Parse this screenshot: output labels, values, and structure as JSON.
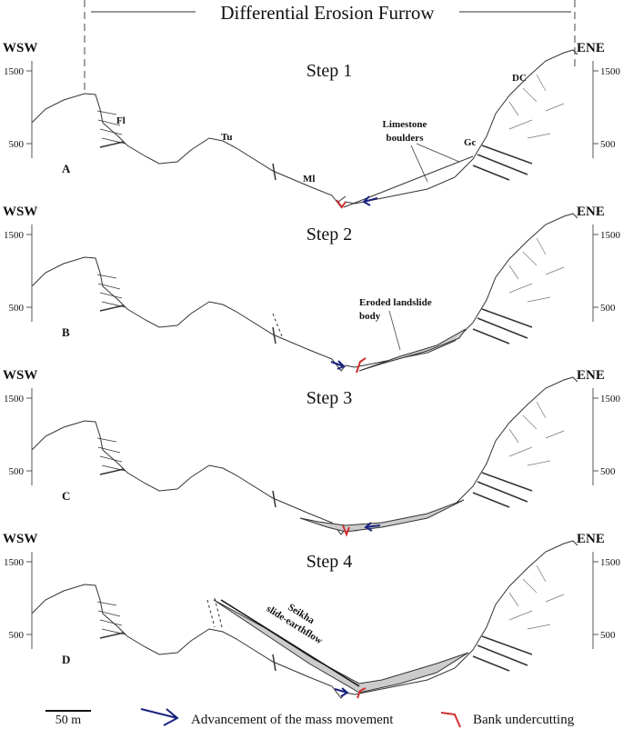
{
  "title": "Differential Erosion Furrow",
  "panels": [
    {
      "left": "WSW",
      "right": "ENE",
      "step": "Step 1",
      "letter": "A",
      "ticks": [
        "1500",
        "500"
      ],
      "labels": [
        "Fl",
        "Tu",
        "Ml",
        "DC",
        "Gc"
      ],
      "note": [
        "Limestone",
        "boulders"
      ]
    },
    {
      "left": "WSW",
      "right": "ENE",
      "step": "Step 2",
      "letter": "B",
      "ticks": [
        "1500",
        "500"
      ],
      "note": [
        "Eroded landslide",
        "body"
      ]
    },
    {
      "left": "WSW",
      "right": "ENE",
      "step": "Step 3",
      "letter": "C",
      "ticks": [
        "1500",
        "500"
      ]
    },
    {
      "left": "WSW",
      "right": "ENE",
      "step": "Step 4",
      "letter": "D",
      "ticks": [
        "1500",
        "500"
      ],
      "note": [
        "Seikha",
        "slide-earthflow"
      ]
    }
  ],
  "legend": {
    "scale": "50 m",
    "arrow": "Advancement of the mass movement",
    "undercut": "Bank undercutting"
  }
}
